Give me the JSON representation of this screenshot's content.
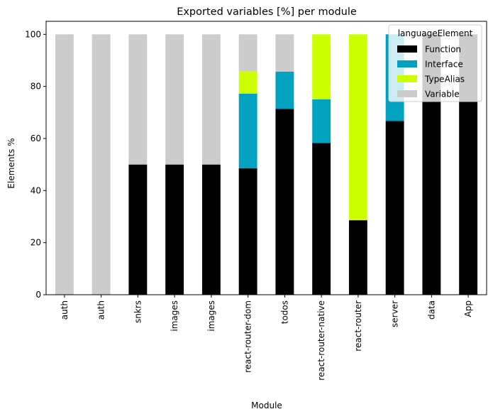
{
  "chart_data": {
    "type": "bar",
    "stacked": true,
    "title": "Exported variables [%] per module",
    "xlabel": "Module",
    "ylabel": "Elements %",
    "ylim": [
      0,
      105
    ],
    "yticks": [
      0,
      20,
      40,
      60,
      80,
      100
    ],
    "grid": false,
    "categories": [
      "auth",
      "auth",
      "snkrs",
      "images",
      "images",
      "react-router-dom",
      "todos",
      "react-router-native",
      "react-router",
      "server",
      "data",
      "App"
    ],
    "series": [
      {
        "name": "Function",
        "color": "#000000",
        "values": [
          0,
          0,
          50,
          50,
          50,
          48.6,
          71.4,
          58.3,
          28.6,
          66.7,
          100,
          100
        ]
      },
      {
        "name": "Interface",
        "color": "#00a2c0",
        "values": [
          0,
          0,
          0,
          0,
          0,
          28.6,
          14.3,
          16.7,
          0,
          33.3,
          0,
          0
        ]
      },
      {
        "name": "TypeAlias",
        "color": "#ccff00",
        "values": [
          0,
          0,
          0,
          0,
          0,
          8.6,
          0,
          25,
          71.4,
          0,
          0,
          0
        ]
      },
      {
        "name": "Variable",
        "color": "#cccccc",
        "values": [
          100,
          100,
          50,
          50,
          50,
          14.2,
          14.3,
          0,
          0,
          0,
          0,
          0
        ]
      }
    ],
    "legend": {
      "title": "languageElement",
      "placement": "top-right"
    }
  }
}
